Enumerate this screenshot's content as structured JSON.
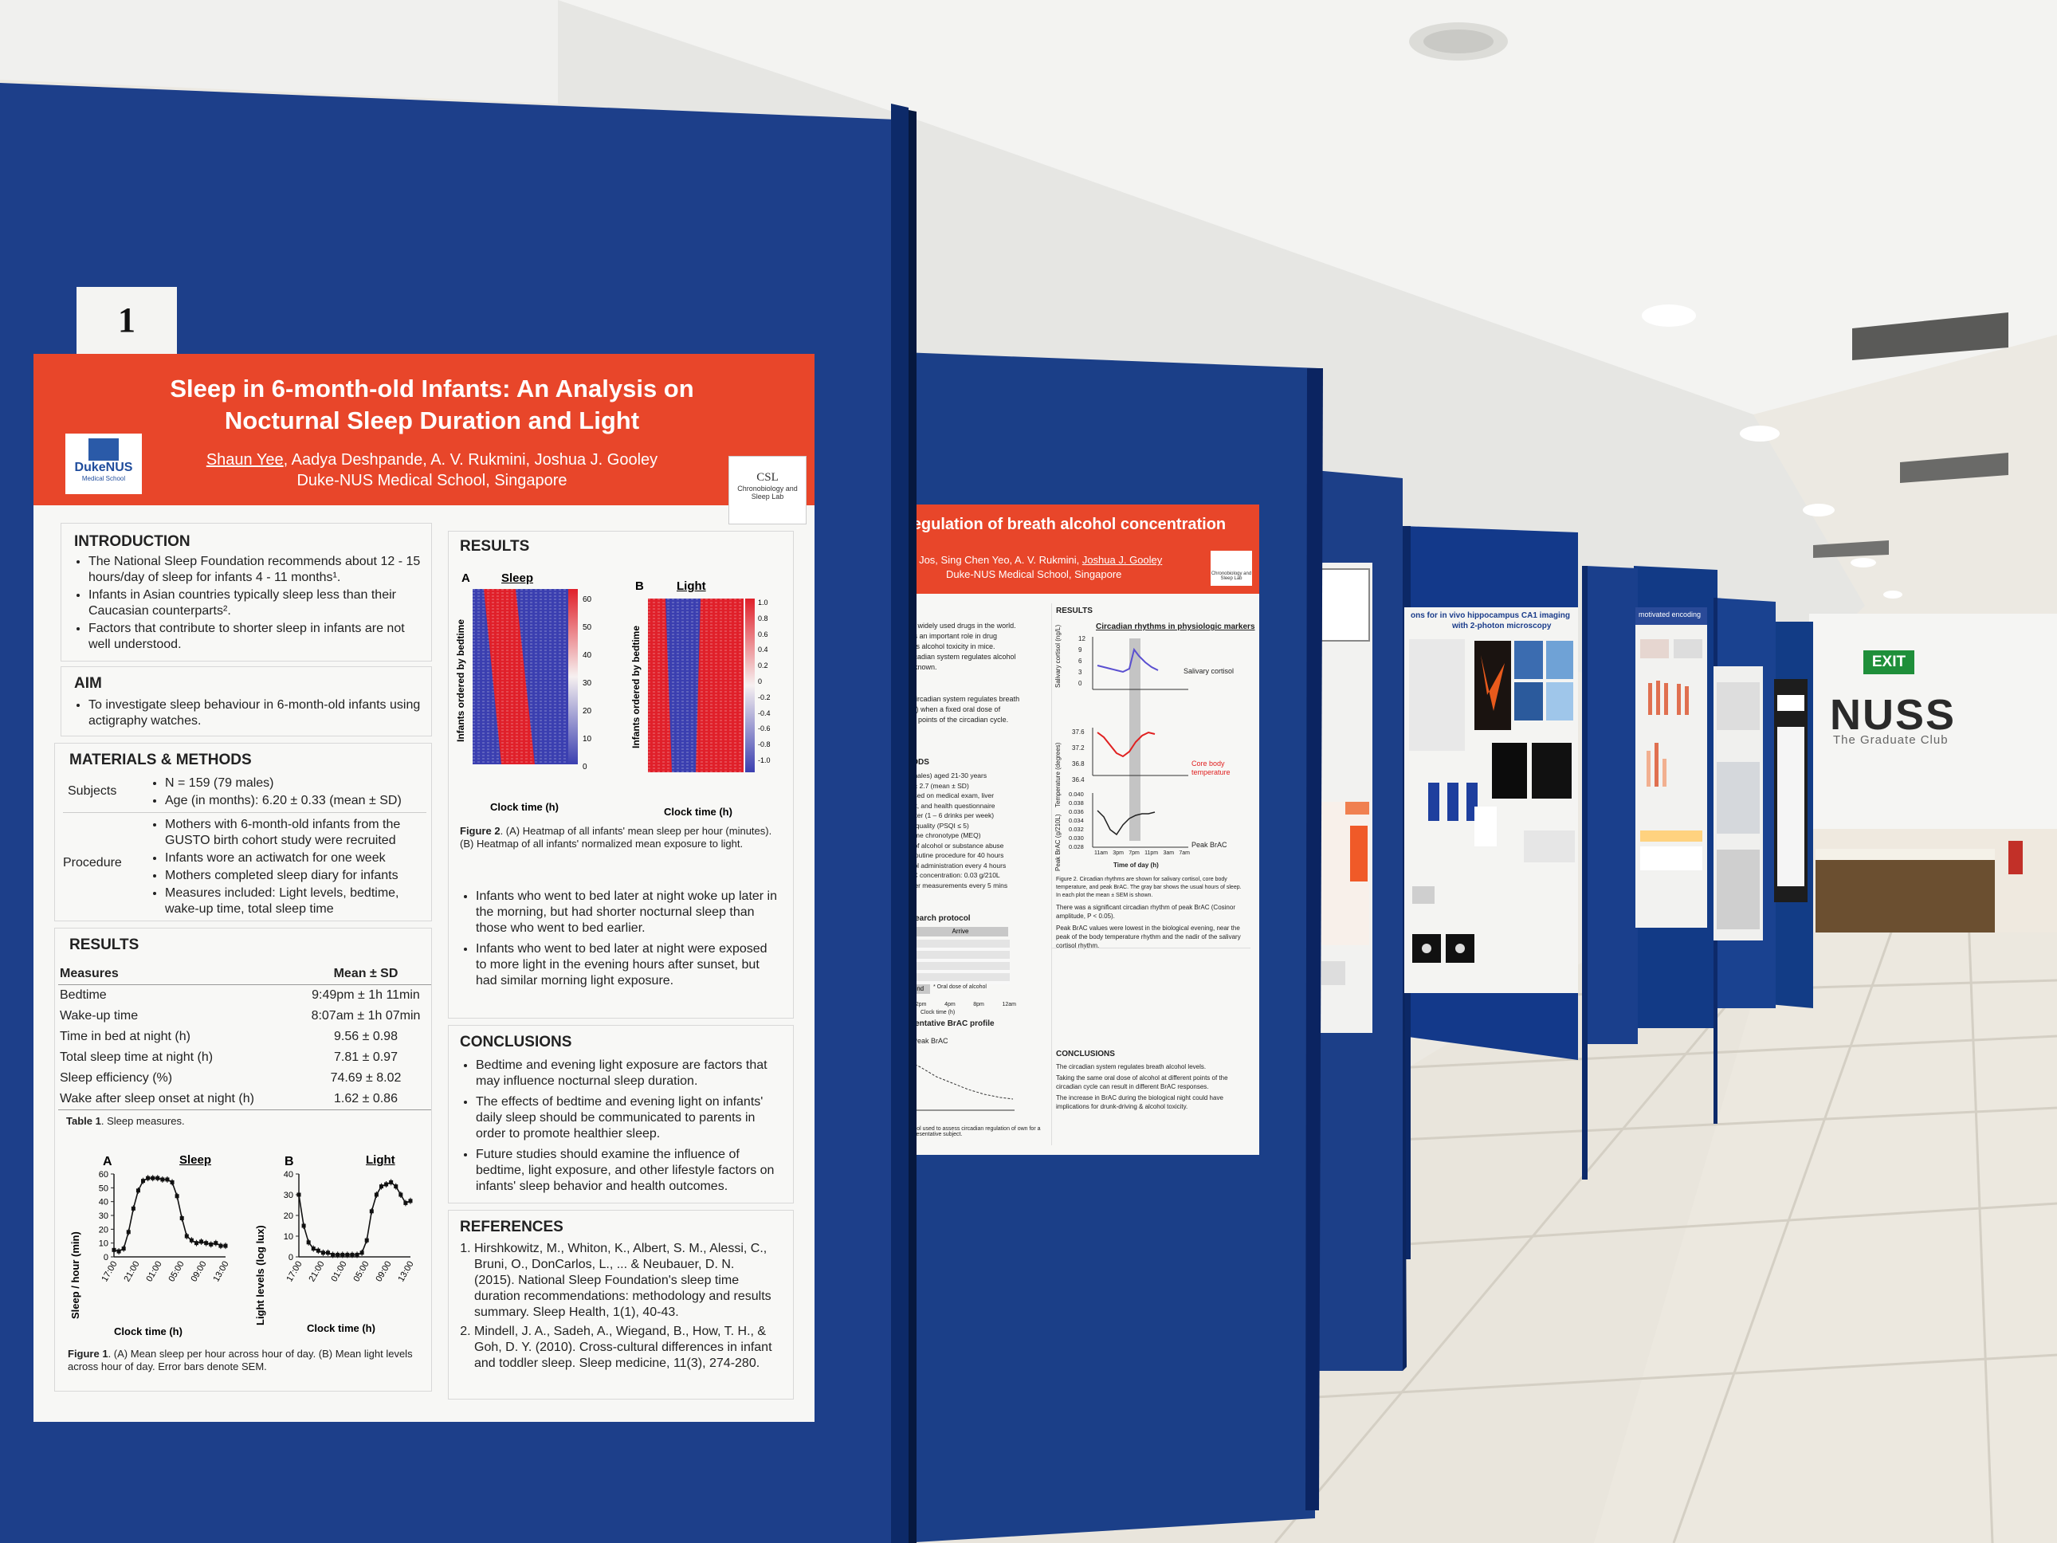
{
  "board_number": "1",
  "poster1": {
    "title_line1": "Sleep in 6-month-old Infants: An Analysis on",
    "title_line2": "Nocturnal Sleep Duration and Light",
    "authors_underlined": "Shaun Yee",
    "authors_rest": ", Aadya Deshpande, A. V. Rukmini, Joshua J. Gooley",
    "affiliation": "Duke-NUS Medical School, Singapore",
    "logo_left_main": "DukeNUS",
    "logo_left_sub": "Medical School",
    "logo_right_abbr": "CSL",
    "logo_right_l1": "Chronobiology and",
    "logo_right_l2": "Sleep Lab",
    "intro_heading": "INTRODUCTION",
    "intro_items": [
      "The National Sleep Foundation recommends about 12 - 15 hours/day of sleep for infants 4 - 11 months¹.",
      "Infants in Asian countries typically sleep less than their Caucasian counterparts².",
      "Factors that contribute to shorter sleep in infants are not well understood."
    ],
    "aim_heading": "AIM",
    "aim_items": [
      "To investigate sleep behaviour in 6-month-old infants using actigraphy watches."
    ],
    "methods_heading": "MATERIALS & METHODS",
    "subjects_label": "Subjects",
    "subjects_items": [
      "N = 159 (79 males)",
      "Age (in months): 6.20 ± 0.33 (mean ± SD)"
    ],
    "procedure_label": "Procedure",
    "procedure_items": [
      "Mothers with 6-month-old infants from the GUSTO birth cohort study were recruited",
      "Infants wore an actiwatch for one week",
      "Mothers completed sleep diary for infants",
      "Measures included: Light levels, bedtime, wake-up time, total sleep time"
    ],
    "results_left_heading": "RESULTS",
    "table_header_measures": "Measures",
    "table_header_value": "Mean ± SD",
    "table_rows": [
      [
        "Bedtime",
        "9:49pm ± 1h 11min"
      ],
      [
        "Wake-up time",
        "8:07am ± 1h 07min"
      ],
      [
        "Time in bed at night (h)",
        "9.56 ± 0.98"
      ],
      [
        "Total sleep time at night (h)",
        "7.81 ± 0.97"
      ],
      [
        "Sleep efficiency (%)",
        "74.69 ± 8.02"
      ],
      [
        "Wake after sleep onset at night (h)",
        "1.62 ± 0.86"
      ]
    ],
    "table_caption_bold": "Table 1",
    "table_caption_rest": ". Sleep measures.",
    "fig1_panel_a": "A",
    "fig1_panel_b": "B",
    "fig1_a_title": "Sleep",
    "fig1_b_title": "Light",
    "fig1_a_ylabel": "Sleep / hour (min)",
    "fig1_b_ylabel": "Light levels (log lux)",
    "fig1_xlabel": "Clock time (h)",
    "fig1_caption_bold": "Figure 1",
    "fig1_caption_rest": ". (A) Mean sleep per hour across hour of day. (B) Mean light levels across hour of day. Error bars denote SEM.",
    "results_right_heading": "RESULTS",
    "fig2_panel_a": "A",
    "fig2_panel_b": "B",
    "fig2_a_title": "Sleep",
    "fig2_b_title": "Light",
    "fig2_ylabel": "Infants ordered by bedtime",
    "fig2_xlabel": "Clock time (h)",
    "fig2_a_scale": [
      "60",
      "50",
      "40",
      "30",
      "20",
      "10",
      "0"
    ],
    "fig2_b_scale": [
      "1.0",
      "0.8",
      "0.6",
      "0.4",
      "0.2",
      "0",
      "-0.2",
      "-0.4",
      "-0.6",
      "-0.8",
      "-1.0"
    ],
    "fig2_caption_bold": "Figure 2",
    "fig2_caption_rest": ". (A) Heatmap of all infants' mean sleep per hour (minutes). (B) Heatmap of all infants' normalized mean exposure to light.",
    "results_right_items": [
      "Infants who went to bed later at night woke up later in the morning, but had shorter nocturnal sleep than those who went to bed earlier.",
      "Infants who went to bed later at night were exposed to more light in the evening hours after sunset, but had similar morning light exposure."
    ],
    "conclusions_heading": "CONCLUSIONS",
    "conclusions_items": [
      "Bedtime and evening light exposure are factors that may influence nocturnal sleep duration.",
      "The effects of bedtime and evening light on infants' daily sleep should be communicated to parents in order to promote healthier sleep.",
      "Future studies should examine the influence of bedtime, light exposure, and other lifestyle factors on infants' sleep behavior and health outcomes."
    ],
    "references_heading": "REFERENCES",
    "references": [
      "Hirshkowitz, M., Whiton, K., Albert, S. M., Alessi, C., Bruni, O., DonCarlos, L., ... & Neubauer, D. N. (2015). National Sleep Foundation's sleep time duration recommendations: methodology and results summary. Sleep Health, 1(1), 40-43.",
      "Mindell, J. A., Sadeh, A., Wiegand, B., How, T. H., & Goh, D. Y. (2010). Cross-cultural differences in infant and toddler sleep. Sleep medicine, 11(3), 274-280."
    ]
  },
  "chart_data": [
    {
      "type": "line",
      "title": "Sleep",
      "xlabel": "Clock time (h)",
      "ylabel": "Sleep / hour (min)",
      "x_ticks": [
        "17:00",
        "21:00",
        "01:00",
        "05:00",
        "09:00",
        "13:00"
      ],
      "y_ticks": [
        0,
        10,
        20,
        30,
        40,
        50,
        60
      ],
      "ylim": [
        0,
        60
      ],
      "x": [
        17,
        18,
        19,
        20,
        21,
        22,
        23,
        0,
        1,
        2,
        3,
        4,
        5,
        6,
        7,
        8,
        9,
        10,
        11,
        12,
        13,
        14,
        15,
        16
      ],
      "values": [
        5,
        4,
        6,
        18,
        35,
        48,
        55,
        57,
        57,
        57,
        56,
        56,
        54,
        44,
        28,
        15,
        12,
        10,
        11,
        10,
        9,
        10,
        8,
        8
      ]
    },
    {
      "type": "line",
      "title": "Light",
      "xlabel": "Clock time (h)",
      "ylabel": "Light levels (log lux)",
      "x_ticks": [
        "17:00",
        "21:00",
        "01:00",
        "05:00",
        "09:00",
        "13:00"
      ],
      "y_ticks": [
        0,
        10,
        20,
        30,
        40
      ],
      "ylim": [
        0,
        40
      ],
      "x": [
        17,
        18,
        19,
        20,
        21,
        22,
        23,
        0,
        1,
        2,
        3,
        4,
        5,
        6,
        7,
        8,
        9,
        10,
        11,
        12,
        13,
        14,
        15,
        16
      ],
      "values": [
        30,
        15,
        7,
        4,
        3,
        2,
        2,
        1,
        1,
        1,
        1,
        1,
        1,
        2,
        8,
        22,
        30,
        34,
        35,
        36,
        34,
        30,
        26,
        27
      ]
    }
  ],
  "poster2": {
    "title": "regulation of breath alcohol concentration",
    "authors_a": "na Jos, Sing Chen Yeo, A. V. Rukmini, ",
    "authors_underlined": "Joshua J. Gooley",
    "affiliation": "Duke-NUS Medical School, Singapore",
    "logo_l1": "Chronobiology and",
    "logo_l2": "Sleep Lab",
    "intro_lines": [
      "ost widely used drugs in the world.",
      "ays an important role in drug",
      "ates alcohol toxicity in mice.",
      "circadian system regulates alcohol",
      "unknown."
    ],
    "aim_lines": [
      "e circadian system regulates breath",
      "AC) when a fixed oral dose of",
      "ent points of the circadian cycle."
    ],
    "methods_heading": "HODS",
    "methods_lines": [
      "1 males) aged 21-30 years",
      ".9 ± 2.7 (mean ± SD)",
      "based on medical exam, liver",
      "test, and health questionnaire",
      "rinker (1 – 6 drinks per week)",
      "ep quality (PSQI ≤ 5)",
      "treme chronotype (MEQ)",
      "ry of alcohol or substance abuse",
      "t Routine procedure for 40 hours",
      "ohol administration every 4 hours",
      "rAC concentration: 0.03 g/210L",
      "lyzer measurements every 5 mins"
    ],
    "protocol_heading": "esearch protocol",
    "protocol_arrive": "Arrive",
    "protocol_end": "End",
    "protocol_legend": "* Oral dose of alcohol",
    "protocol_times": [
      "12pm",
      "4pm",
      "8pm",
      "12am"
    ],
    "protocol_xlabel": "Clock time (h)",
    "brac_heading": "esentative BrAC profile",
    "brac_label": "Peak BrAC",
    "results_heading": "RESULTS",
    "results_fig_title": "Circadian rhythms in physiologic markers",
    "cortisol_label": "Salivary cortisol",
    "cortisol_ylabel": "Salivary cortisol (ng/L)",
    "cortisol_ticks": [
      "12",
      "9",
      "6",
      "3",
      "0"
    ],
    "temp_label": "Core body temperature",
    "temp_ylabel": "Temperature (degrees)",
    "temp_ticks": [
      "37.6",
      "37.2",
      "36.8",
      "36.4"
    ],
    "brac_series_label": "Peak BrAC",
    "brac_ylabel": "Peak BrAC (g/210L)",
    "brac_ticks": [
      "0.040",
      "0.038",
      "0.036",
      "0.034",
      "0.032",
      "0.030",
      "0.028"
    ],
    "time_ticks": [
      "11am",
      "3pm",
      "7pm",
      "11pm",
      "3am",
      "7am"
    ],
    "time_xlabel": "Time of day (h)",
    "fig2_caption": "Figure 2. Circadian rhythms are shown for salivary cortisol, core body temperature, and peak BrAC. The gray bar shows the usual hours of sleep. In each plot the mean ± SEM is shown.",
    "result_items": [
      "There was a significant circadian rhythm of peak BrAC (Cosinor amplitude, P < 0.05).",
      "Peak BrAC values were lowest in the biological evening, near the peak of the body temperature rhythm and the nadir of the salivary cortisol rhythm."
    ],
    "conclusions_heading": "CONCLUSIONS",
    "conclusion_items": [
      "The circadian system regulates breath alcohol levels.",
      "Taking the same oral dose of alcohol at different points of the circadian cycle can result in different BrAC responses.",
      "The increase in BrAC during the biological night could have implications for drunk-driving & alcohol toxicity."
    ],
    "bottom_caption": "otocol used to assess circadian regulation of own for a representative subject."
  },
  "poster3": {
    "title_l1": "ons for in vivo hippocampus CA1 imaging",
    "title_l2": "with 2-photon microscopy"
  },
  "poster4": {
    "title": "motivated encoding"
  },
  "venue": {
    "sign_main": "NUSS",
    "sign_sub": "The Graduate Club",
    "exit_sign": "EXIT"
  }
}
